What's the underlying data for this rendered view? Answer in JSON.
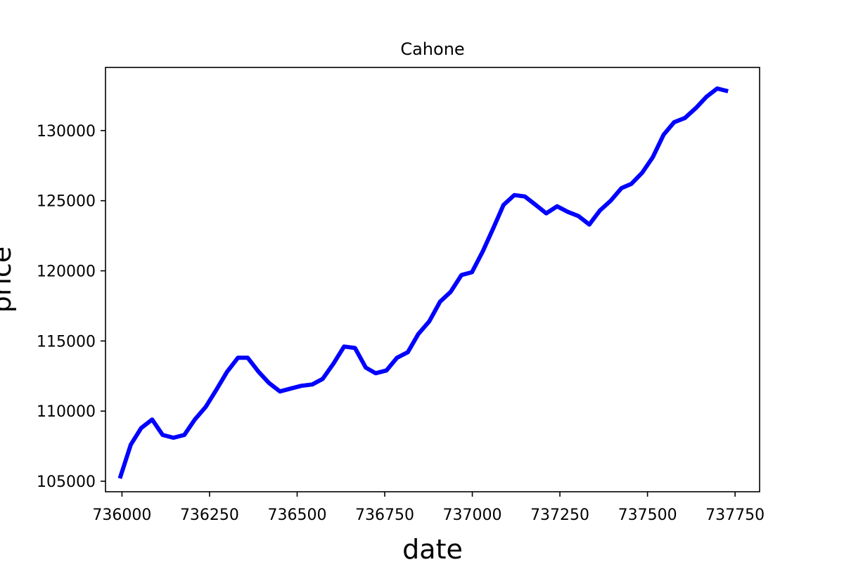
{
  "chart_data": {
    "type": "line",
    "title": "Cahone",
    "xlabel": "date",
    "ylabel": "price",
    "xlim": [
      735953,
      737820
    ],
    "ylim": [
      104250,
      134500
    ],
    "xticks": [
      736000,
      736250,
      736500,
      736750,
      737000,
      737250,
      737500,
      737750
    ],
    "yticks": [
      105000,
      110000,
      115000,
      120000,
      125000,
      130000
    ],
    "grid": false,
    "legend": "none",
    "series": [
      {
        "color": "#0000ff",
        "x": [
          735994,
          736025,
          736055,
          736086,
          736116,
          736147,
          736178,
          736208,
          736239,
          736269,
          736300,
          736331,
          736359,
          736390,
          736420,
          736451,
          736481,
          736512,
          736543,
          736573,
          736604,
          736634,
          736665,
          736696,
          736724,
          736755,
          736785,
          736816,
          736846,
          736877,
          736908,
          736938,
          736969,
          736999,
          737030,
          737061,
          737089,
          737120,
          737150,
          737181,
          737211,
          737242,
          737273,
          737303,
          737334,
          737364,
          737395,
          737426,
          737454,
          737485,
          737515,
          737546,
          737576,
          737607,
          737638,
          737668,
          737699,
          737730
        ],
        "y": [
          105200,
          107600,
          108800,
          109400,
          108300,
          108100,
          108300,
          109400,
          110300,
          111500,
          112800,
          113800,
          113800,
          112800,
          112000,
          111400,
          111600,
          111800,
          111900,
          112300,
          113400,
          114600,
          114500,
          113100,
          112700,
          112900,
          113800,
          114200,
          115500,
          116400,
          117800,
          118500,
          119700,
          119900,
          121400,
          123100,
          124700,
          125400,
          125300,
          124700,
          124100,
          124600,
          124200,
          123900,
          123300,
          124300,
          125000,
          125900,
          126200,
          127000,
          128100,
          129700,
          130600,
          130900,
          131600,
          132400,
          133000,
          132800
        ]
      }
    ]
  }
}
